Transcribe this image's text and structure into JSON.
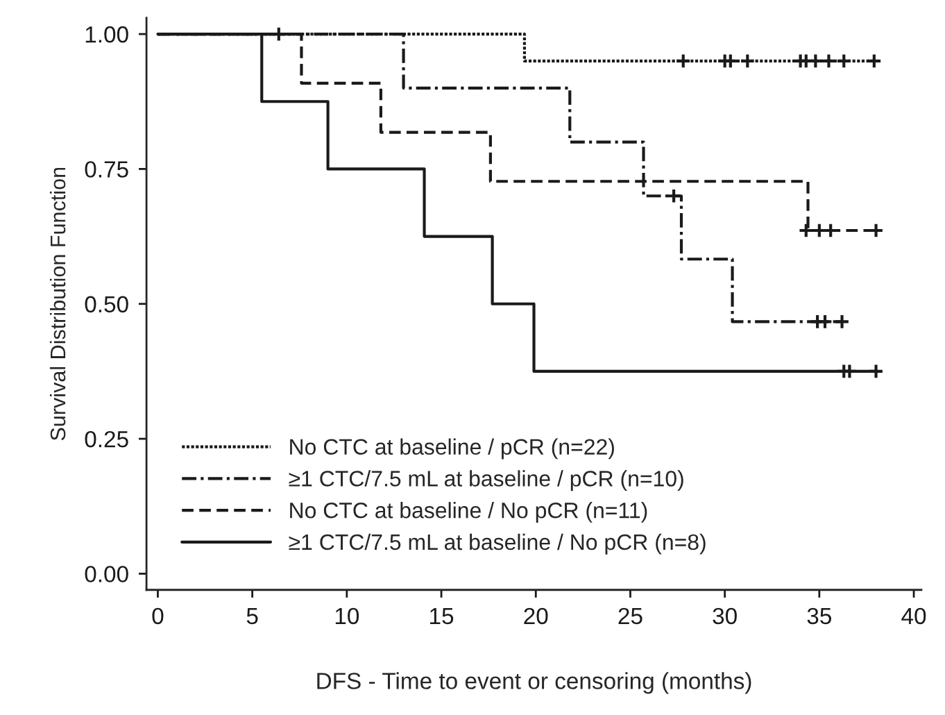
{
  "chart_data": {
    "type": "step",
    "xlabel": "DFS - Time to event or censoring (months)",
    "ylabel": "Survival Distribution Function",
    "xlim": [
      -0.6,
      40.4
    ],
    "xticks": [
      0,
      5,
      10,
      15,
      20,
      25,
      30,
      35,
      40
    ],
    "ylim": [
      -0.03,
      1.03
    ],
    "yticks": [
      {
        "value": 0,
        "label": "0.00"
      },
      {
        "value": 0.25,
        "label": "0.25"
      },
      {
        "value": 0.5,
        "label": "0.50"
      },
      {
        "value": 0.75,
        "label": "0.75"
      },
      {
        "value": 1,
        "label": "1.00"
      }
    ],
    "grid": false,
    "legend": "bottom left",
    "marker": "none",
    "series": [
      {
        "name": "No CTC at baseline / pCR (n=22)",
        "color": "#1a1a1a",
        "line_style": "dotted",
        "x": [
          0,
          19.4,
          37.9
        ],
        "values": [
          1.0,
          0.95,
          0.95
        ]
      },
      {
        "name": "≥1 CTC/7.5 mL at baseline / pCR (n=10)",
        "color": "#1a1a1a",
        "line_style": "dashdot",
        "x": [
          0,
          13.0,
          21.8,
          25.7,
          27.7,
          30.4,
          36.2
        ],
        "values": [
          1.0,
          0.9,
          0.8,
          0.7,
          0.583,
          0.467,
          0.467
        ]
      },
      {
        "name": "No CTC at baseline / No pCR (n=11)",
        "color": "#1a1a1a",
        "line_style": "dashed",
        "x": [
          0,
          7.6,
          11.8,
          17.6,
          34.4,
          38.0
        ],
        "values": [
          1.0,
          0.909,
          0.818,
          0.727,
          0.636,
          0.636
        ]
      },
      {
        "name": "≥1 CTC/7.5 mL at baseline / No pCR (n=8)",
        "color": "#1a1a1a",
        "line_style": "solid",
        "x": [
          0,
          5.5,
          9.0,
          14.1,
          17.7,
          19.9,
          38.0
        ],
        "values": [
          1.0,
          0.875,
          0.75,
          0.625,
          0.5,
          0.375,
          0.375
        ]
      },
      {
        "type": "scatter",
        "marker": "cross",
        "color": "#1a1a1a",
        "x": [
          6.4,
          27.8,
          30.0,
          30.3,
          31.2,
          34.0,
          34.3,
          34.8,
          35.5,
          36.3,
          37.9
        ],
        "values": [
          1.0,
          0.95,
          0.95,
          0.95,
          0.95,
          0.95,
          0.95,
          0.95,
          0.95,
          0.95,
          0.95
        ]
      },
      {
        "type": "scatter",
        "marker": "cross",
        "color": "#1a1a1a",
        "x": [
          27.3,
          34.9,
          35.3,
          36.2
        ],
        "values": [
          0.7,
          0.467,
          0.467,
          0.467
        ]
      },
      {
        "type": "scatter",
        "marker": "cross",
        "color": "#1a1a1a",
        "x": [
          34.3,
          35.0,
          35.6,
          38.0
        ],
        "values": [
          0.636,
          0.636,
          0.636,
          0.636
        ]
      },
      {
        "type": "scatter",
        "marker": "cross",
        "color": "#1a1a1a",
        "x": [
          36.3,
          36.6,
          38.0
        ],
        "values": [
          0.375,
          0.375,
          0.375
        ]
      }
    ]
  }
}
